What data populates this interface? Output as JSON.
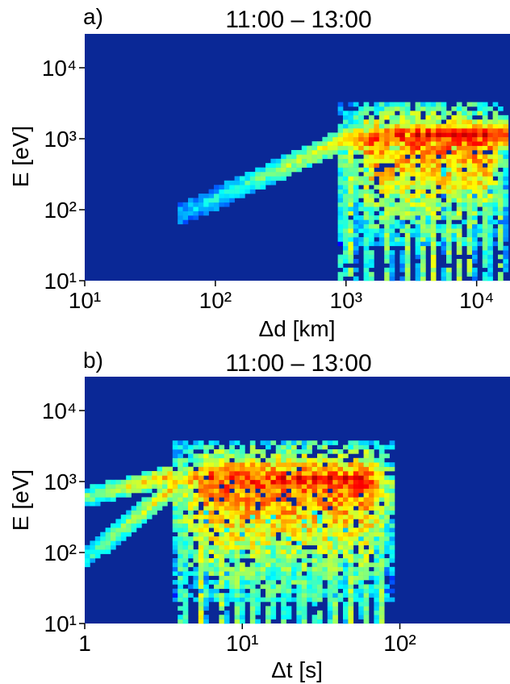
{
  "chart_data": [
    {
      "type": "heatmap",
      "panel_label": "a)",
      "title": "11:00 – 13:00",
      "xlabel": "Δd [km]",
      "ylabel": "E [eV]",
      "x_scale": "log",
      "y_scale": "log",
      "xlim": [
        10,
        18000
      ],
      "ylim": [
        10,
        30000
      ],
      "x_ticks": [
        {
          "value": 10,
          "label": "10¹"
        },
        {
          "value": 100,
          "label": "10²"
        },
        {
          "value": 1000,
          "label": "10³"
        },
        {
          "value": 10000,
          "label": "10⁴"
        }
      ],
      "y_ticks": [
        {
          "value": 10,
          "label": "10¹"
        },
        {
          "value": 100,
          "label": "10²"
        },
        {
          "value": 1000,
          "label": "10³"
        },
        {
          "value": 10000,
          "label": "10⁴"
        }
      ],
      "background_color": "#0a2896",
      "colormap": "jet",
      "grid": false,
      "structures": [
        {
          "kind": "band",
          "x_from": 50,
          "x_to": 1000,
          "y_from": 80,
          "y_to": 1000,
          "y_width_dex": 0.16,
          "intensity_from": 0.3,
          "intensity_to": 0.68
        },
        {
          "kind": "band",
          "x_from": 1000,
          "x_to": 17000,
          "y_from": 1000,
          "y_to": 1150,
          "y_width_dex": 0.2,
          "intensity_from": 0.68,
          "intensity_to": 0.85
        },
        {
          "kind": "block",
          "x_from": 900,
          "x_to": 17000,
          "y_from": 30,
          "y_to": 3500,
          "core_y": 1000,
          "peak": 0.78
        },
        {
          "kind": "streaks",
          "x_from": 900,
          "x_to": 17000,
          "y_from": 10,
          "y_to": 400,
          "columns": [
            950,
            1100,
            1500,
            2100,
            2900,
            3800,
            4700,
            6000,
            7400,
            9000,
            12000,
            15500
          ]
        },
        {
          "kind": "hotspots",
          "y": 1150,
          "x_values": [
            2600,
            3500,
            4300,
            5300,
            6500,
            7800,
            9300,
            11500
          ],
          "peak": 0.95
        }
      ]
    },
    {
      "type": "heatmap",
      "panel_label": "b)",
      "title": "11:00 – 13:00",
      "xlabel": "Δt [s]",
      "ylabel": "E [eV]",
      "x_scale": "log",
      "y_scale": "log",
      "xlim": [
        1,
        500
      ],
      "ylim": [
        10,
        30000
      ],
      "x_ticks": [
        {
          "value": 1,
          "label": "1"
        },
        {
          "value": 10,
          "label": "10¹"
        },
        {
          "value": 100,
          "label": "10²"
        }
      ],
      "y_ticks": [
        {
          "value": 10,
          "label": "10¹"
        },
        {
          "value": 100,
          "label": "10²"
        },
        {
          "value": 1000,
          "label": "10³"
        },
        {
          "value": 10000,
          "label": "10⁴"
        }
      ],
      "background_color": "#0a2896",
      "colormap": "jet",
      "grid": false,
      "structures": [
        {
          "kind": "band",
          "x_from": 1,
          "x_to": 3.5,
          "y_from": 600,
          "y_to": 1200,
          "y_width_dex": 0.14,
          "intensity_from": 0.5,
          "intensity_to": 0.72
        },
        {
          "kind": "band",
          "x_from": 1,
          "x_to": 4,
          "y_from": 80,
          "y_to": 1000,
          "y_width_dex": 0.16,
          "intensity_from": 0.42,
          "intensity_to": 0.72
        },
        {
          "kind": "block",
          "x_from": 3.5,
          "x_to": 90,
          "y_from": 20,
          "y_to": 4000,
          "core_y": 1100,
          "peak": 0.8
        },
        {
          "kind": "streaks",
          "x_from": 3.5,
          "x_to": 90,
          "y_from": 10,
          "y_to": 400,
          "columns": [
            4.2,
            5.5,
            7.5,
            9.5,
            12,
            15,
            19,
            24,
            30,
            38,
            48,
            60,
            75
          ]
        },
        {
          "kind": "hotspots",
          "y": 1100,
          "x_values": [
            18,
            23,
            29,
            36,
            45,
            55
          ],
          "peak": 0.95
        }
      ]
    }
  ]
}
